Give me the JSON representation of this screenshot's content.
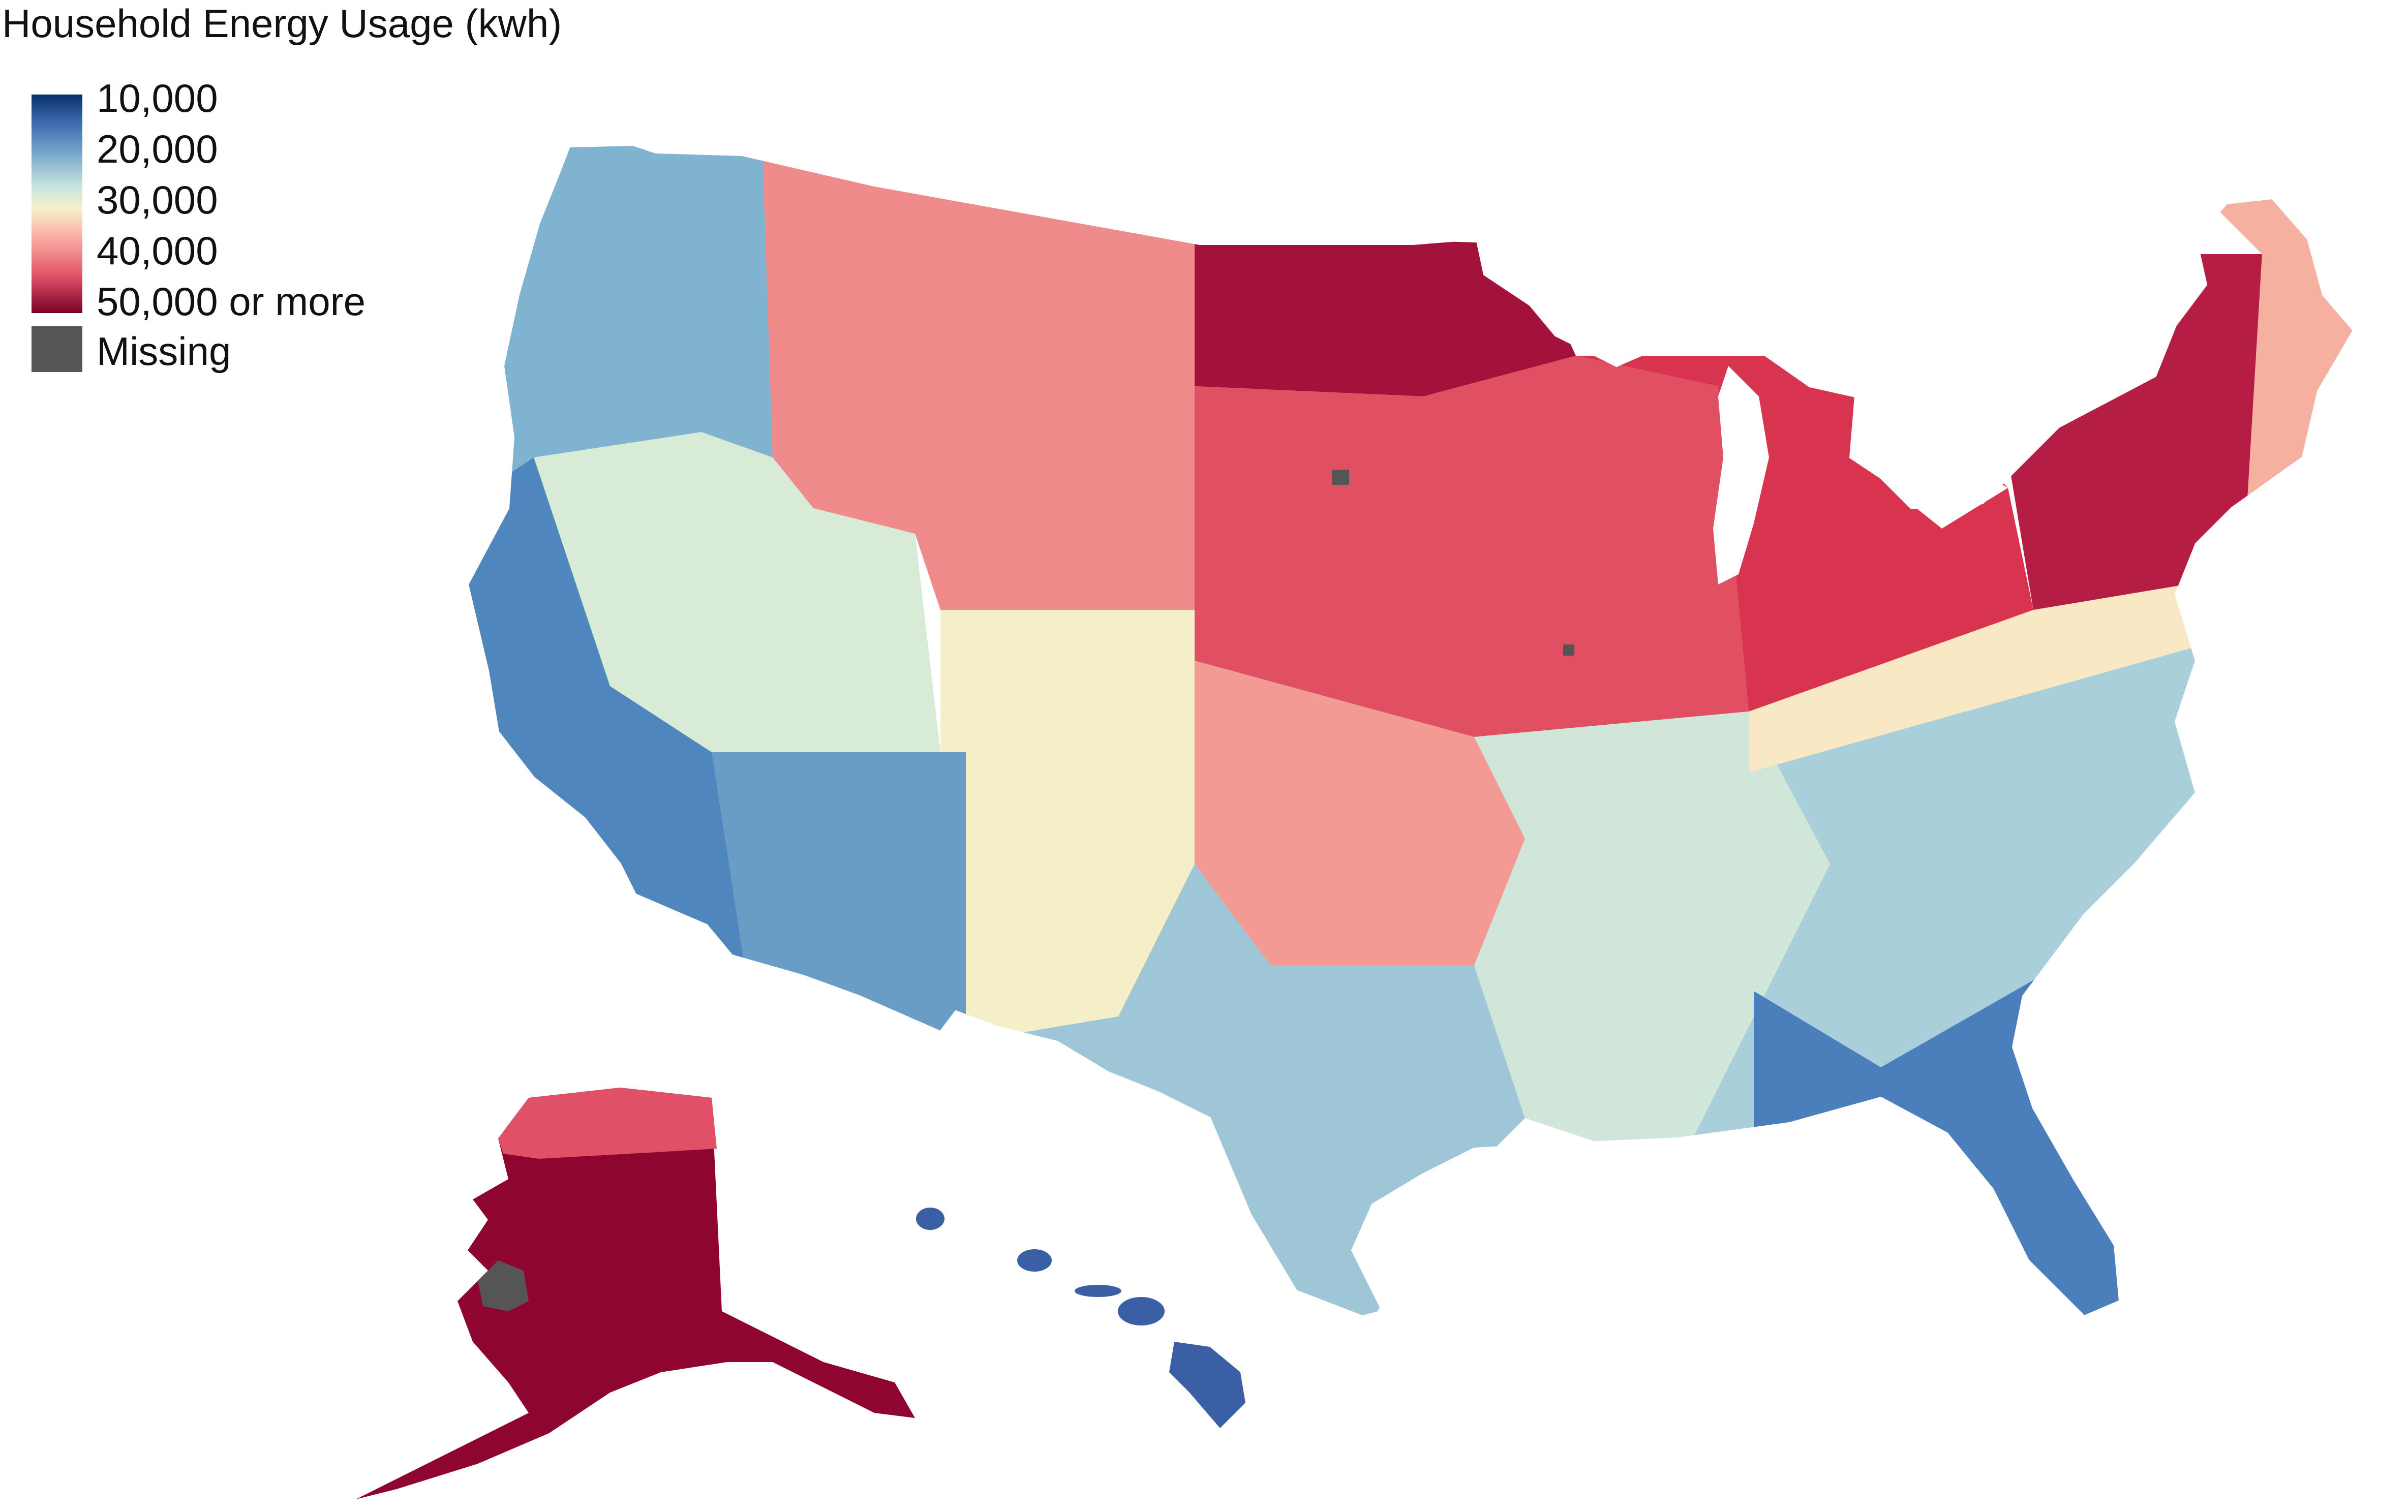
{
  "title": "Household Energy Usage (kwh)",
  "legend": {
    "ticks": [
      "10,000",
      "20,000",
      "30,000",
      "40,000",
      "50,000 or more"
    ],
    "missing_label": "Missing",
    "ramp_colors": [
      "#08306b",
      "#3a67ab",
      "#6f9ec9",
      "#c6e4e0",
      "#f5f2c9",
      "#fbb4a8",
      "#e4576a",
      "#7a0029"
    ],
    "missing_color": "#555555"
  },
  "regions": [
    {
      "name": "pacific-northwest",
      "color": "#7fb3cf"
    },
    {
      "name": "great-basin",
      "color": "#d8ebd7"
    },
    {
      "name": "california",
      "color": "#4f86bd"
    },
    {
      "name": "southwest",
      "color": "#6a9dc6"
    },
    {
      "name": "northern-rockies",
      "color": "#f08b8c"
    },
    {
      "name": "north-dakota-minnesota",
      "color": "#a3123a"
    },
    {
      "name": "central-plains",
      "color": "#e04f62"
    },
    {
      "name": "kansas-oklahoma",
      "color": "#f49a94"
    },
    {
      "name": "colorado-new-mexico",
      "color": "#f4efc8"
    },
    {
      "name": "texas",
      "color": "#9ec6d6"
    },
    {
      "name": "south-central",
      "color": "#cfe6d8"
    },
    {
      "name": "southeast",
      "color": "#a9d0da"
    },
    {
      "name": "florida-georgia",
      "color": "#4a7fbb"
    },
    {
      "name": "ohio-valley",
      "color": "#f8e9c4"
    },
    {
      "name": "great-lakes",
      "color": "#d8334f"
    },
    {
      "name": "new-york-new-england",
      "color": "#b51d45"
    },
    {
      "name": "northern-new-england",
      "color": "#f6b0a0"
    },
    {
      "name": "alaska",
      "color": "#8e0630"
    },
    {
      "name": "hawaii",
      "color": "#3a5fa4"
    }
  ]
}
